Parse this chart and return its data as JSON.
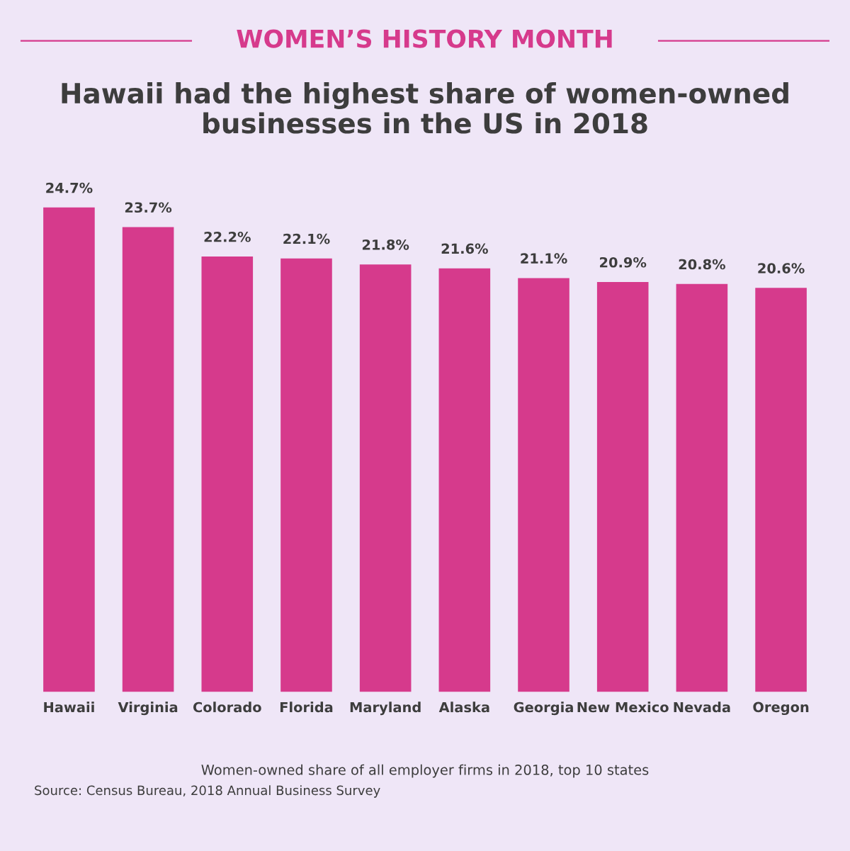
{
  "chart_data": {
    "type": "bar",
    "subtitle": "WOMEN’S HISTORY MONTH",
    "title": "Hawaii had the highest share of women-owned\nbusinesses in the US in 2018",
    "xlabel": "Women-owned share of all employer firms in 2018, top 10 states",
    "categories": [
      "Hawaii",
      "Virginia",
      "Colorado",
      "Florida",
      "Maryland",
      "Alaska",
      "Georgia",
      "New Mexico",
      "Nevada",
      "Oregon"
    ],
    "values": [
      24.7,
      23.7,
      22.2,
      22.1,
      21.8,
      21.6,
      21.1,
      20.9,
      20.8,
      20.6
    ],
    "value_labels": [
      "24.7%",
      "23.7%",
      "22.2%",
      "22.1%",
      "21.8%",
      "21.6%",
      "21.1%",
      "20.9%",
      "20.8%",
      "20.6%"
    ],
    "color": "#d63a8c",
    "grid": false,
    "annotations": [
      "Source: Census Bureau, 2018 Annual Business Survey"
    ]
  }
}
